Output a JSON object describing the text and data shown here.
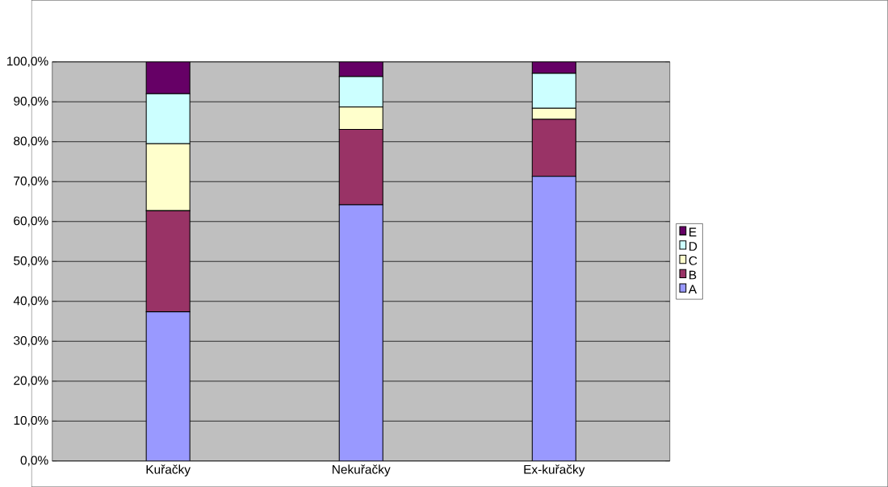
{
  "chart_data": {
    "type": "bar",
    "stacked": true,
    "categories": [
      "Kuřačky",
      "Nekuřačky",
      "Ex-kuřačky"
    ],
    "series": [
      {
        "name": "A",
        "color": "#9999ff",
        "values": [
          37.4,
          64.2,
          71.3
        ]
      },
      {
        "name": "B",
        "color": "#993366",
        "values": [
          25.3,
          18.9,
          14.3
        ]
      },
      {
        "name": "C",
        "color": "#ffffcc",
        "values": [
          16.8,
          5.6,
          2.8
        ]
      },
      {
        "name": "D",
        "color": "#ccffff",
        "values": [
          12.5,
          7.6,
          8.7
        ]
      },
      {
        "name": "E",
        "color": "#660066",
        "values": [
          8.0,
          3.7,
          2.9
        ]
      }
    ],
    "ylim": [
      0,
      100
    ],
    "yticks": [
      {
        "value": 0,
        "label": "0,0%"
      },
      {
        "value": 10,
        "label": "10,0%"
      },
      {
        "value": 20,
        "label": "20,0%"
      },
      {
        "value": 30,
        "label": "30,0%"
      },
      {
        "value": 40,
        "label": "40,0%"
      },
      {
        "value": 50,
        "label": "50,0%"
      },
      {
        "value": 60,
        "label": "60,0%"
      },
      {
        "value": 70,
        "label": "70,0%"
      },
      {
        "value": 80,
        "label": "80,0%"
      },
      {
        "value": 90,
        "label": "90,0%"
      },
      {
        "value": 100,
        "label": "100,0%"
      }
    ],
    "grid": "y",
    "legend": "right"
  }
}
